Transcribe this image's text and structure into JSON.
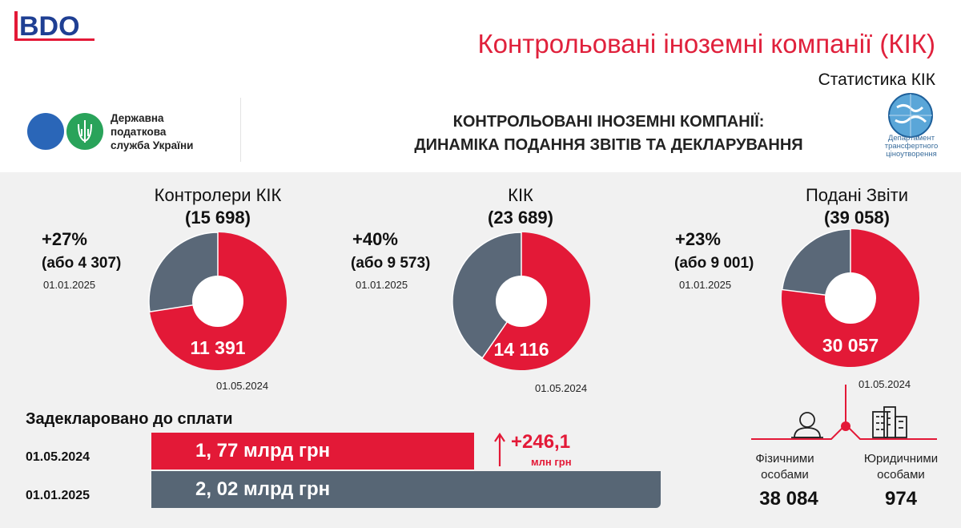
{
  "header": {
    "logo": "BDO",
    "title": "Контрольовані іноземні компанії (КІК)",
    "subtitle": "Статистика КІК",
    "tax_service": [
      "Державна",
      "податкова",
      "служба України"
    ],
    "main_heading": [
      "КОНТРОЛЬОВАНІ ІНОЗЕМНІ КОМПАНІЇ:",
      "ДИНАМІКА ПОДАННЯ ЗВІТІВ ТА ДЕКЛАРУВАННЯ"
    ],
    "department": [
      "Департамент",
      "трансфертного",
      "ціноутворення"
    ]
  },
  "colors": {
    "red": "#e31937",
    "grey": "#5a6878",
    "title_red": "#e0213c"
  },
  "chart_data": [
    {
      "type": "pie",
      "title": "Контролери КІК",
      "total": 15698,
      "total_label": "(15 698)",
      "slices": [
        {
          "label": "01.05.2024",
          "value": 11391,
          "value_label": "11 391",
          "color": "#e31937"
        },
        {
          "label": "01.01.2025",
          "value": 4307,
          "color": "#5a6878"
        }
      ],
      "growth_pct": "+27%",
      "growth_abs": "(або 4 307)"
    },
    {
      "type": "pie",
      "title": "КІК",
      "total": 23689,
      "total_label": "(23 689)",
      "slices": [
        {
          "label": "01.05.2024",
          "value": 14116,
          "value_label": "14 116",
          "color": "#e31937"
        },
        {
          "label": "01.01.2025",
          "value": 9573,
          "color": "#5a6878"
        }
      ],
      "growth_pct": "+40%",
      "growth_abs": "(або 9 573)"
    },
    {
      "type": "pie",
      "title": "Подані Звіти",
      "total": 39058,
      "total_label": "(39 058)",
      "slices": [
        {
          "label": "01.05.2024",
          "value": 30057,
          "value_label": "30 057",
          "color": "#e31937"
        },
        {
          "label": "01.01.2025",
          "value": 9001,
          "color": "#5a6878"
        }
      ],
      "growth_pct": "+23%",
      "growth_abs": "(або 9 001)"
    },
    {
      "type": "bar",
      "title": "Задекларовано до сплати",
      "categories": [
        "01.05.2024",
        "01.01.2025"
      ],
      "values": [
        1.77,
        2.02
      ],
      "value_labels": [
        "1, 77 млрд грн",
        "2, 02 млрд грн"
      ],
      "delta": "+246,1",
      "delta_unit": "млн грн"
    }
  ],
  "breakdown": {
    "individuals_label": [
      "Фізичними",
      "особами"
    ],
    "individuals_value": "38 084",
    "entities_label": [
      "Юридичними",
      "особами"
    ],
    "entities_value": "974"
  }
}
